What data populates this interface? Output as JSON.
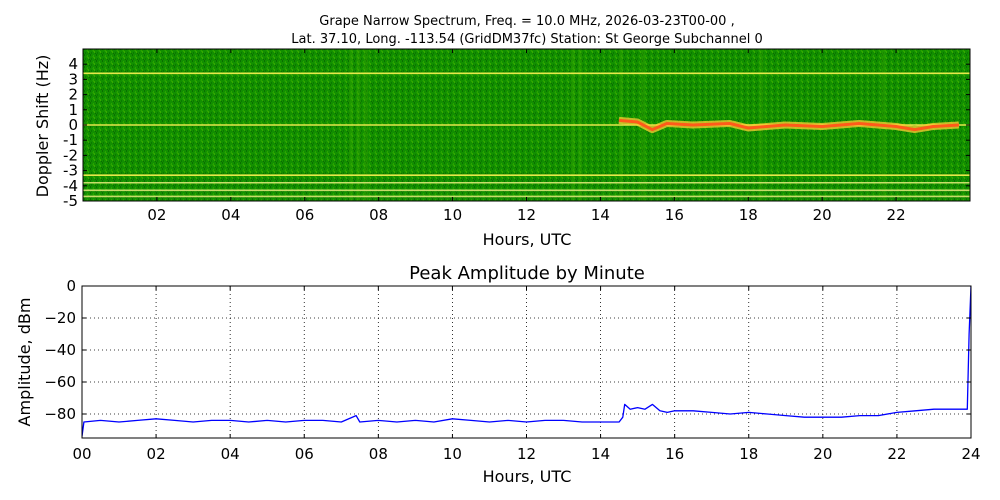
{
  "chart_data": [
    {
      "type": "heatmap",
      "title_line1": "Grape Narrow Spectrum, Freq. = 10.0 MHz, 2026-03-23T00-00 ,",
      "title_line2": "Lat.  37.10, Long. -113.54 (GridDM37fc) Station: St George Subchannel 0",
      "xlabel": "Hours, UTC",
      "ylabel": "Doppler Shift (Hz)",
      "xlim": [
        0,
        24
      ],
      "ylim": [
        -5,
        5
      ],
      "xticks": [
        2,
        4,
        6,
        8,
        10,
        12,
        14,
        16,
        18,
        20,
        22
      ],
      "xtick_labels": [
        "02",
        "04",
        "06",
        "08",
        "10",
        "12",
        "14",
        "16",
        "18",
        "20",
        "22"
      ],
      "yticks": [
        4,
        3,
        2,
        1,
        0,
        -1,
        -2,
        -3,
        -4,
        -5
      ],
      "ytick_labels": [
        "4",
        "3",
        "2",
        "1",
        "0",
        "-1",
        "-2",
        "-3",
        "-4",
        "-5"
      ],
      "background_color": "#0f8a00",
      "constant_lines_hz": [
        {
          "doppler": 3.4,
          "color": "#e8e84a"
        },
        {
          "doppler": 0.0,
          "color": "#e8e84a"
        },
        {
          "doppler": -3.3,
          "color": "#e8e84a"
        },
        {
          "doppler": -3.8,
          "color": "#c8dc6a"
        },
        {
          "doppler": -4.3,
          "color": "#c8dc6a"
        },
        {
          "doppler": -4.7,
          "color": "#c8dc6a"
        }
      ],
      "doppler_trace": [
        {
          "hour": 14.5,
          "doppler": 0.3
        },
        {
          "hour": 15.0,
          "doppler": 0.2
        },
        {
          "hour": 15.4,
          "doppler": -0.3
        },
        {
          "hour": 15.8,
          "doppler": 0.1
        },
        {
          "hour": 16.5,
          "doppler": 0.0
        },
        {
          "hour": 17.5,
          "doppler": 0.1
        },
        {
          "hour": 18.0,
          "doppler": -0.2
        },
        {
          "hour": 19.0,
          "doppler": 0.0
        },
        {
          "hour": 20.0,
          "doppler": -0.1
        },
        {
          "hour": 21.0,
          "doppler": 0.1
        },
        {
          "hour": 22.0,
          "doppler": -0.1
        },
        {
          "hour": 22.5,
          "doppler": -0.3
        },
        {
          "hour": 23.0,
          "doppler": -0.1
        },
        {
          "hour": 23.7,
          "doppler": 0.0
        }
      ]
    },
    {
      "type": "line",
      "title": "Peak Amplitude by Minute",
      "xlabel": "Hours, UTC",
      "ylabel": "Amplitude, dBm",
      "xlim": [
        0,
        24
      ],
      "ylim": [
        -95,
        0
      ],
      "grid": true,
      "xticks": [
        0,
        2,
        4,
        6,
        8,
        10,
        12,
        14,
        16,
        18,
        20,
        22,
        24
      ],
      "xtick_labels": [
        "00",
        "02",
        "04",
        "06",
        "08",
        "10",
        "12",
        "14",
        "16",
        "18",
        "20",
        "22",
        "24"
      ],
      "yticks": [
        0,
        -20,
        -40,
        -60,
        -80
      ],
      "ytick_labels": [
        "0",
        "−20",
        "−40",
        "−60",
        "−80"
      ],
      "line_color": "#0000ff",
      "series": [
        {
          "x": [
            0.0,
            0.05,
            0.5,
            1.0,
            1.5,
            2.0,
            2.5,
            3.0,
            3.5,
            4.0,
            4.5,
            5.0,
            5.5,
            6.0,
            6.5,
            7.0,
            7.4,
            7.5,
            8.0,
            8.5,
            9.0,
            9.5,
            10.0,
            10.5,
            11.0,
            11.5,
            12.0,
            12.5,
            13.0,
            13.5,
            14.0,
            14.5,
            14.6,
            14.65,
            14.8,
            15.0,
            15.2,
            15.4,
            15.6,
            15.8,
            16.0,
            16.5,
            17.0,
            17.5,
            18.0,
            18.5,
            19.0,
            19.5,
            20.0,
            20.5,
            21.0,
            21.5,
            22.0,
            22.5,
            23.0,
            23.5,
            23.9,
            23.95,
            24.0
          ],
          "y": [
            -94,
            -85,
            -84,
            -85,
            -84,
            -83,
            -84,
            -85,
            -84,
            -84,
            -85,
            -84,
            -85,
            -84,
            -84,
            -85,
            -81,
            -85,
            -84,
            -85,
            -84,
            -85,
            -83,
            -84,
            -85,
            -84,
            -85,
            -84,
            -84,
            -85,
            -85,
            -85,
            -82,
            -74,
            -77,
            -76,
            -77,
            -74,
            -78,
            -79,
            -78,
            -78,
            -79,
            -80,
            -79,
            -80,
            -81,
            -82,
            -82,
            -82,
            -81,
            -81,
            -79,
            -78,
            -77,
            -77,
            -77,
            -30,
            0
          ]
        }
      ]
    }
  ]
}
